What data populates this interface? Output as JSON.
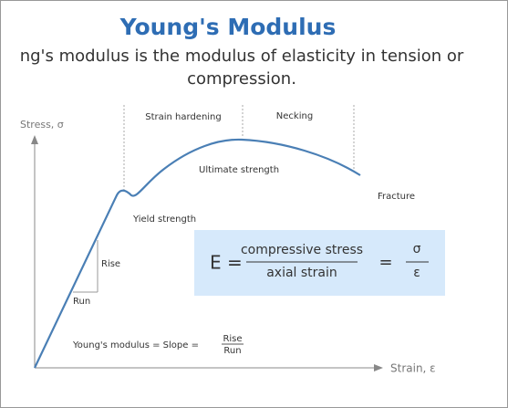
{
  "header": {
    "title": "Young's Modulus",
    "subtitle_lines": [
      "ng's modulus is the modulus of elasticity in tension or",
      "compression."
    ]
  },
  "diagram": {
    "y_axis_label": "Stress, σ",
    "x_axis_label": "Strain, ε",
    "regions": [
      "Strain hardening",
      "Necking"
    ],
    "points": {
      "ultimate": "Ultimate strength",
      "yield": "Yield strength",
      "fracture": "Fracture"
    },
    "triangle": {
      "rise": "Rise",
      "run": "Run"
    },
    "slope_formula": {
      "left": "Young's modulus = Slope =",
      "numerator": "Rise",
      "denominator": "Run"
    },
    "formula_box": {
      "left": "E =",
      "numerator": "compressive stress",
      "denominator": "axial strain",
      "equals": "=",
      "symbol_numerator": "σ",
      "symbol_denominator": "ε"
    }
  }
}
